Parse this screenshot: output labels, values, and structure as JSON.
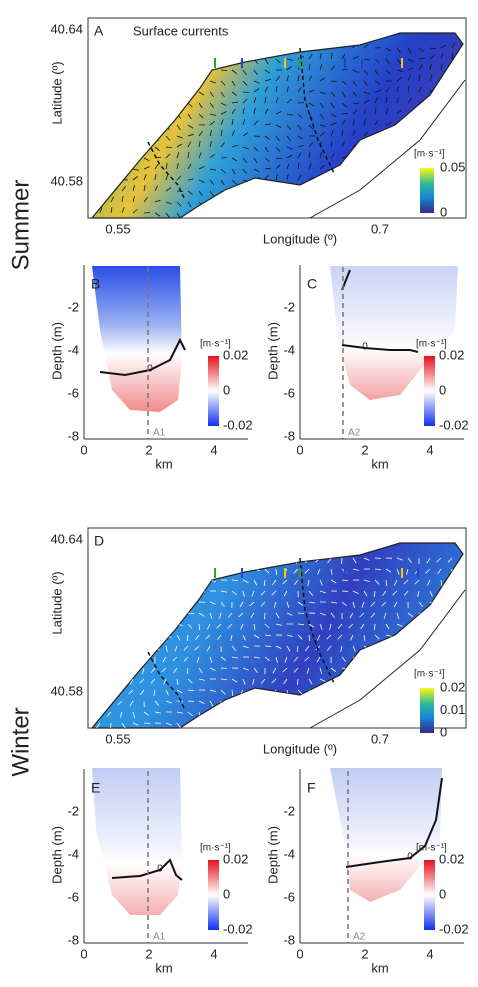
{
  "seasons": [
    "Summer",
    "Winter"
  ],
  "panels": [
    {
      "letter": "A",
      "title": "Surface currents",
      "xlabel": "Longitude (º)",
      "ylabel": "Latitude (º)",
      "xticks": [
        "0.55",
        "0.7"
      ],
      "yticks": [
        "40.64",
        "40.58"
      ],
      "colorbar": {
        "unit": "[m·s⁻¹]",
        "ticks": [
          "0.05",
          "0"
        ]
      }
    },
    {
      "letter": "B",
      "xlabel": "km",
      "ylabel": "Depth (m)",
      "xticks": [
        "0",
        "2",
        "4"
      ],
      "yticks": [
        "-2",
        "-4",
        "-6",
        "-8"
      ],
      "contour": "0",
      "transect": "A1",
      "colorbar": {
        "unit": "[m·s⁻¹]",
        "ticks": [
          "0.02",
          "0",
          "-0.02"
        ]
      }
    },
    {
      "letter": "C",
      "xlabel": "km",
      "ylabel": "Depth (m)",
      "xticks": [
        "0",
        "2",
        "4"
      ],
      "yticks": [
        "-2",
        "-4",
        "-6",
        "-8"
      ],
      "contour": "0",
      "transect": "A2",
      "colorbar": {
        "unit": "[m·s⁻¹]",
        "ticks": [
          "0.02",
          "0",
          "-0.02"
        ]
      }
    },
    {
      "letter": "D",
      "xlabel": "Longitude (º)",
      "ylabel": "Latitude (º)",
      "xticks": [
        "0.55",
        "0.7"
      ],
      "yticks": [
        "40.64",
        "40.58"
      ],
      "colorbar": {
        "unit": "[m·s⁻¹]",
        "ticks": [
          "0.02",
          "0.01",
          "0"
        ]
      }
    },
    {
      "letter": "E",
      "xlabel": "km",
      "ylabel": "Depth (m)",
      "xticks": [
        "0",
        "2",
        "4"
      ],
      "yticks": [
        "-2",
        "-4",
        "-6",
        "-8"
      ],
      "contour": "0",
      "transect": "A1",
      "colorbar": {
        "unit": "[m·s⁻¹]",
        "ticks": [
          "0.02",
          "0",
          "-0.02"
        ]
      }
    },
    {
      "letter": "F",
      "xlabel": "km",
      "ylabel": "Depth (m)",
      "xticks": [
        "0",
        "2",
        "4"
      ],
      "yticks": [
        "-2",
        "-4",
        "-6",
        "-8"
      ],
      "contour": "0",
      "transect": "A2",
      "colorbar": {
        "unit": "[m·s⁻¹]",
        "ticks": [
          "0.02",
          "0",
          "-0.02"
        ]
      }
    }
  ]
}
